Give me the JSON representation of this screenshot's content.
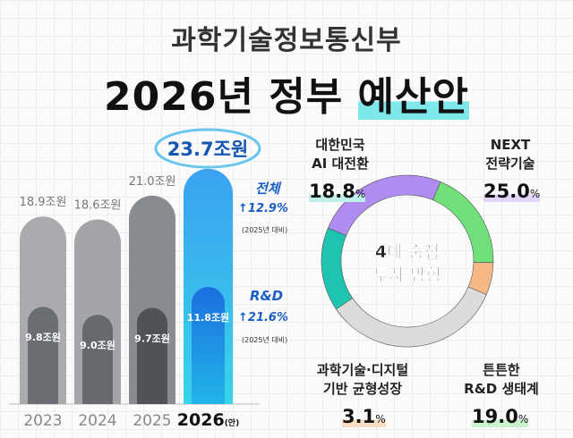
{
  "header": {
    "subtitle": "과학기술정보통신부",
    "title_a": "2026년 정부 ",
    "title_b": "예산안"
  },
  "chart_data": [
    {
      "type": "bar",
      "categories": [
        "2023",
        "2024",
        "2025",
        "2026"
      ],
      "category_suffix_2026": "(안)",
      "series": [
        {
          "name": "전체",
          "values": [
            18.9,
            18.6,
            21.0,
            23.7
          ],
          "labels": [
            "18.9조원",
            "18.6조원",
            "21.0조원",
            "23.7조원"
          ]
        },
        {
          "name": "R&D",
          "values": [
            9.8,
            9.0,
            9.7,
            11.8
          ],
          "labels": [
            "9.8조원",
            "9.0조원",
            "9.7조원",
            "11.8조원"
          ]
        }
      ],
      "colors": {
        "total": "#9a9da1",
        "rnd": "#5d6167",
        "highlight_total": "#3fb4ef",
        "highlight_rnd": "#1e78e0"
      },
      "annotations": {
        "total_label": "전체",
        "total_change": "↑12.9%",
        "rnd_label": "R&D",
        "rnd_change": "↑21.6%",
        "compare": "(2025년 대비)"
      }
    },
    {
      "type": "pie",
      "center_text": [
        "4대 중점",
        "투자 방향"
      ],
      "slices": [
        {
          "label": [
            "대한민국",
            "AI 대전환"
          ],
          "value": 18.8,
          "color": "#1fc4b0"
        },
        {
          "label": [
            "NEXT",
            "전략기술"
          ],
          "value": 25.0,
          "color": "#b08cf0"
        },
        {
          "label": [
            "튼튼한",
            "R&D 생태계"
          ],
          "value": 19.0,
          "color": "#6fe07a"
        },
        {
          "label": [
            "과학기술·디지털",
            "기반 균형성장"
          ],
          "value": 3.1,
          "color": "#f7b888"
        }
      ],
      "remainder_color": "#dcdcdc"
    }
  ]
}
